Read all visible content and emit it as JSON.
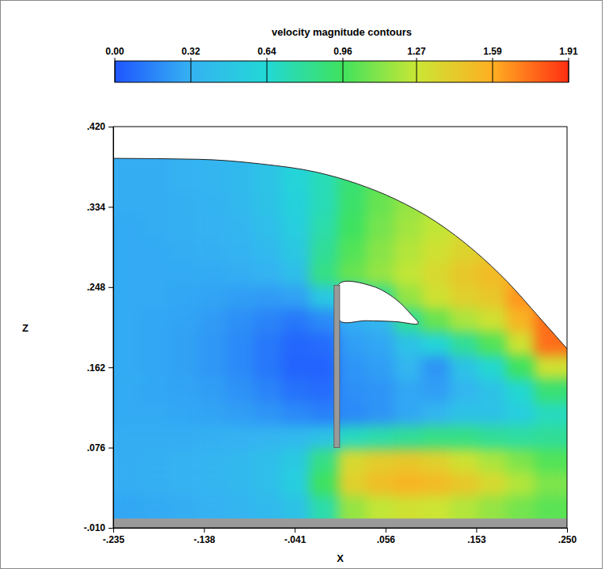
{
  "chart_data": {
    "type": "heatmap",
    "title": "velocity magnitude contours",
    "x_label": "X",
    "y_label": "Z",
    "xlim": [
      -0.235,
      0.25
    ],
    "ylim": [
      -0.01,
      0.42
    ],
    "xticks": [
      {
        "value": -0.235,
        "label": "-.235"
      },
      {
        "value": -0.138,
        "label": "-.138"
      },
      {
        "value": -0.041,
        "label": "-.041"
      },
      {
        "value": 0.056,
        "label": ".056"
      },
      {
        "value": 0.153,
        "label": ".153"
      },
      {
        "value": 0.25,
        "label": ".250"
      }
    ],
    "yticks": [
      {
        "value": -0.01,
        "label": "-.010"
      },
      {
        "value": 0.076,
        "label": ".076"
      },
      {
        "value": 0.162,
        "label": ".162"
      },
      {
        "value": 0.248,
        "label": ".248"
      },
      {
        "value": 0.334,
        "label": ".334"
      },
      {
        "value": 0.42,
        "label": ".420"
      }
    ],
    "colorbar": {
      "range": [
        0,
        1.91
      ],
      "ticks": [
        {
          "value": 0,
          "label": "0.00"
        },
        0.32,
        0.64,
        0.96,
        1.27,
        1.59,
        1.91
      ]
    },
    "x_edges": [
      -0.235,
      -0.205,
      -0.175,
      -0.145,
      -0.115,
      -0.085,
      -0.055,
      -0.025,
      0.005,
      0.035,
      0.065,
      0.095,
      0.125,
      0.155,
      0.185,
      0.215,
      0.25
    ],
    "z_edges": [
      0,
      0.025,
      0.05,
      0.075,
      0.1,
      0.125,
      0.15,
      0.175,
      0.2,
      0.225,
      0.25,
      0.275,
      0.3,
      0.325,
      0.35,
      0.375,
      0.4
    ],
    "cells": [
      [
        0.28,
        0.29,
        0.3,
        0.32,
        0.34,
        0.38,
        0.45,
        0.75,
        1.15,
        1.25,
        1.3,
        1.28,
        1.22,
        1.15,
        1.08,
        1.02
      ],
      [
        0.3,
        0.31,
        0.32,
        0.34,
        0.37,
        0.42,
        0.55,
        0.95,
        1.4,
        1.5,
        1.55,
        1.52,
        1.45,
        1.35,
        1.22,
        1.1
      ],
      [
        0.3,
        0.31,
        0.32,
        0.34,
        0.37,
        0.42,
        0.52,
        0.85,
        1.35,
        1.42,
        1.45,
        1.4,
        1.3,
        1.2,
        1.1,
        1.0
      ],
      [
        0.3,
        0.3,
        0.3,
        0.31,
        0.32,
        0.34,
        0.38,
        0.45,
        0.7,
        0.75,
        0.8,
        0.85,
        0.85,
        0.8,
        0.78,
        0.8
      ],
      [
        0.29,
        0.29,
        0.28,
        0.27,
        0.25,
        0.22,
        0.18,
        0.15,
        0.18,
        0.22,
        0.28,
        0.35,
        0.45,
        0.45,
        0.55,
        0.7
      ],
      [
        0.29,
        0.28,
        0.27,
        0.25,
        0.21,
        0.16,
        0.1,
        0.08,
        0.2,
        0.22,
        0.28,
        0.25,
        0.35,
        0.45,
        0.65,
        0.9
      ],
      [
        0.29,
        0.28,
        0.26,
        0.23,
        0.18,
        0.12,
        0.05,
        0.05,
        0.22,
        0.25,
        0.35,
        0.22,
        0.45,
        0.65,
        0.95,
        1.3
      ],
      [
        0.29,
        0.28,
        0.26,
        0.23,
        0.18,
        0.12,
        0.06,
        0.08,
        0.25,
        0.28,
        0.45,
        0.6,
        0.8,
        1.0,
        1.3,
        1.75
      ],
      [
        0.29,
        0.28,
        0.27,
        0.24,
        0.2,
        0.16,
        0.12,
        0.18,
        0.3,
        0.35,
        0.8,
        1.05,
        1.2,
        1.3,
        1.55,
        1.75
      ],
      [
        0.29,
        0.29,
        0.28,
        0.27,
        0.25,
        0.24,
        0.26,
        0.5,
        0.6,
        0.8,
        1.15,
        1.3,
        1.4,
        1.45,
        1.65,
        null
      ],
      [
        0.29,
        0.29,
        0.29,
        0.29,
        0.3,
        0.33,
        0.42,
        0.85,
        1.05,
        1.15,
        1.25,
        1.35,
        1.45,
        1.52,
        1.6,
        null
      ],
      [
        0.29,
        0.29,
        0.3,
        0.31,
        0.33,
        0.38,
        0.5,
        0.8,
        1.0,
        1.12,
        1.22,
        1.3,
        1.38,
        1.45,
        null,
        null
      ],
      [
        0.29,
        0.3,
        0.31,
        0.32,
        0.35,
        0.42,
        0.55,
        0.75,
        0.95,
        1.08,
        1.18,
        1.25,
        1.32,
        null,
        null,
        null
      ],
      [
        0.3,
        0.3,
        0.31,
        0.33,
        0.37,
        0.45,
        0.58,
        0.72,
        0.92,
        1.05,
        1.15,
        1.22,
        null,
        null,
        null,
        null
      ],
      [
        0.3,
        0.3,
        0.32,
        0.34,
        0.38,
        0.46,
        0.6,
        0.72,
        0.9,
        1.02,
        null,
        null,
        null,
        null,
        null,
        null
      ],
      [
        0.3,
        0.3,
        0.32,
        0.34,
        0.38,
        0.46,
        0.6,
        null,
        null,
        null,
        null,
        null,
        null,
        null,
        null,
        null
      ]
    ],
    "free_surface": {
      "x": [
        -0.235,
        -0.144,
        -0.077,
        -0.017,
        0.025,
        0.067,
        0.11,
        0.152,
        0.186,
        0.22,
        0.25
      ],
      "z": [
        0.386,
        0.385,
        0.38,
        0.371,
        0.359,
        0.342,
        0.318,
        0.286,
        0.254,
        0.216,
        0.182
      ]
    },
    "cavity": {
      "x": [
        0.007,
        0.042,
        0.067,
        0.084,
        0.091,
        0.067,
        0.035,
        0.007
      ],
      "z": [
        0.252,
        0.249,
        0.235,
        0.218,
        0.209,
        0.211,
        0.212,
        0.212
      ]
    },
    "gate": {
      "x": [
        0.001,
        0.007
      ],
      "z": [
        0.076,
        0.25
      ]
    },
    "floor": {
      "z": [
        -0.01,
        0
      ]
    }
  }
}
